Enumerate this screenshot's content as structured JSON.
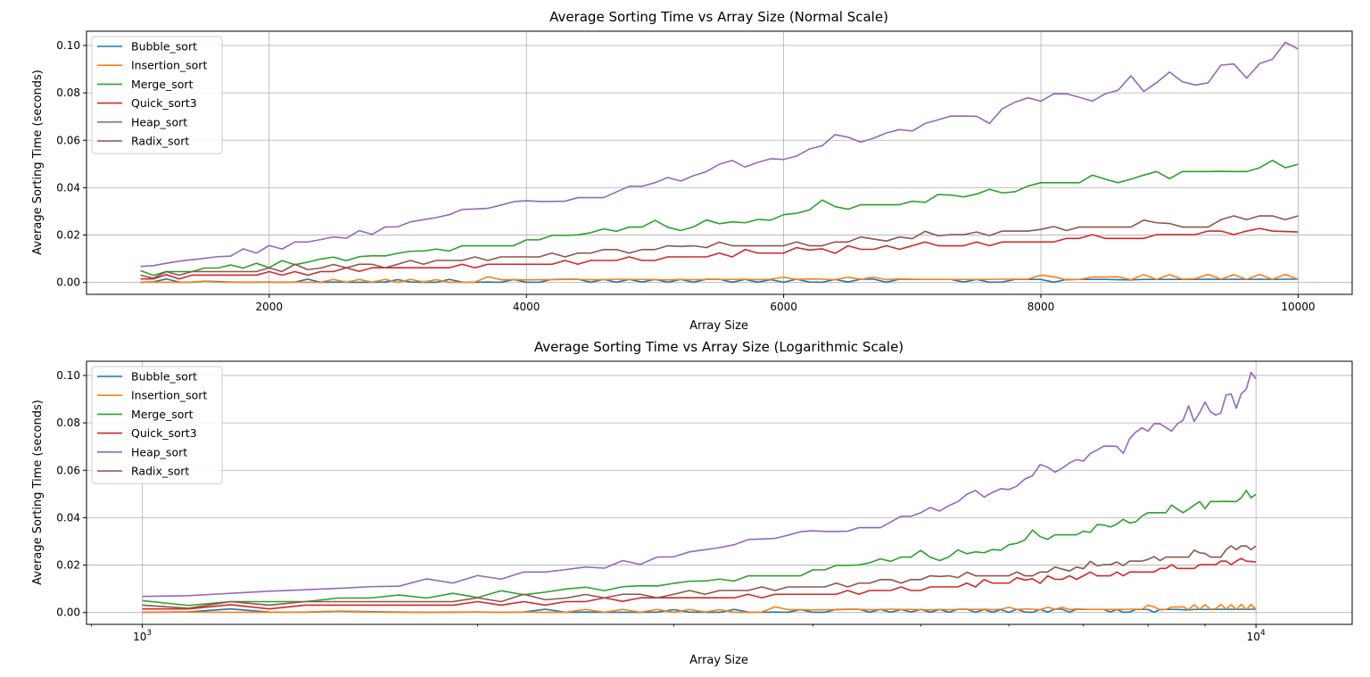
{
  "chart_data": [
    {
      "type": "line",
      "title": "Average Sorting Time vs Array Size (Normal Scale)",
      "xlabel": "Array Size",
      "ylabel": "Average Sorting Time (seconds)",
      "xscale": "linear",
      "xlim": [
        580,
        10420
      ],
      "ylim": [
        -0.005,
        0.106
      ],
      "xticks": [
        2000,
        4000,
        6000,
        8000,
        10000
      ],
      "xtick_labels": [
        "2000",
        "4000",
        "6000",
        "8000",
        "10000"
      ],
      "yticks": [
        0.0,
        0.02,
        0.04,
        0.06,
        0.08,
        0.1
      ],
      "ytick_labels": [
        "0.00",
        "0.02",
        "0.04",
        "0.06",
        "0.08",
        "0.10"
      ],
      "grid": true,
      "legend_position": "upper-left",
      "x": [
        1000,
        1100,
        1200,
        1300,
        1400,
        1500,
        1600,
        1700,
        1800,
        1900,
        2000,
        2100,
        2200,
        2300,
        2400,
        2500,
        2600,
        2700,
        2800,
        2900,
        3000,
        3100,
        3200,
        3300,
        3400,
        3500,
        3600,
        3700,
        3800,
        3900,
        4000,
        4100,
        4200,
        4300,
        4400,
        4500,
        4600,
        4700,
        4800,
        4900,
        5000,
        5100,
        5200,
        5300,
        5400,
        5500,
        5600,
        5700,
        5800,
        5900,
        6000,
        6100,
        6200,
        6300,
        6400,
        6500,
        6600,
        6700,
        6800,
        6900,
        7000,
        7100,
        7200,
        7300,
        7400,
        7500,
        7600,
        7700,
        7800,
        7900,
        8000,
        8100,
        8200,
        8300,
        8400,
        8500,
        8600,
        8700,
        8800,
        8900,
        9000,
        9100,
        9200,
        9300,
        9400,
        9500,
        9600,
        9700,
        9800,
        9900,
        10000
      ],
      "series": [
        {
          "name": "Bubble_sort",
          "color": "#1f77b4",
          "values": [
            0.0001,
            0.0003,
            0.0015,
            0.0002,
            0.0001,
            0.0006,
            0.0004,
            0.0002,
            0.0001,
            0.0001,
            0.0002,
            0.0001,
            0.0002,
            0.0014,
            0.0001,
            0.0002,
            0.0001,
            0.0001,
            0.0001,
            0.0002,
            0.0012,
            0.0002,
            0.0001,
            0.0001,
            0.0013,
            0.0002,
            0.0001,
            0.0002,
            0.0001,
            0.0012,
            0.0001,
            0.0001,
            0.0013,
            0.0014,
            0.0014,
            0.0001,
            0.0013,
            0.0001,
            0.0013,
            0.0002,
            0.0013,
            0.0001,
            0.0013,
            0.0001,
            0.0014,
            0.0014,
            0.0001,
            0.0013,
            0.0001,
            0.0012,
            0.0001,
            0.0014,
            0.0002,
            0.0001,
            0.0013,
            0.0002,
            0.0014,
            0.0014,
            0.0001,
            0.0014,
            0.0013,
            0.0013,
            0.0013,
            0.0013,
            0.0002,
            0.0013,
            0.0001,
            0.0002,
            0.0013,
            0.0013,
            0.0013,
            0.0001,
            0.0013,
            0.0013,
            0.0013,
            0.0013,
            0.0012,
            0.0011,
            0.0013,
            0.0013,
            0.0013,
            0.0013,
            0.0013,
            0.0014,
            0.0013,
            0.0014,
            0.0013,
            0.0014,
            0.0013,
            0.0014,
            0.0014
          ]
        },
        {
          "name": "Insertion_sort",
          "color": "#ff7f0e",
          "values": [
            0.0001,
            0.0002,
            0.0001,
            0.0001,
            0.0002,
            0.0006,
            0.0002,
            0.0001,
            0.0001,
            0.0002,
            0.0002,
            0.0001,
            0.0002,
            0.0001,
            0.0001,
            0.0013,
            0.0001,
            0.0013,
            0.0001,
            0.0013,
            0.0001,
            0.0013,
            0.0002,
            0.0012,
            0.0001,
            0.0001,
            0.0002,
            0.0024,
            0.0012,
            0.0012,
            0.0011,
            0.0012,
            0.0012,
            0.0013,
            0.0013,
            0.0012,
            0.0012,
            0.0014,
            0.0013,
            0.0013,
            0.0012,
            0.0011,
            0.0013,
            0.0012,
            0.0013,
            0.0013,
            0.0013,
            0.0014,
            0.0012,
            0.0014,
            0.0022,
            0.0013,
            0.0015,
            0.0014,
            0.0012,
            0.0022,
            0.0014,
            0.0022,
            0.0012,
            0.0015,
            0.0014,
            0.0013,
            0.0013,
            0.0013,
            0.0013,
            0.0013,
            0.0013,
            0.0014,
            0.0014,
            0.0014,
            0.0031,
            0.0024,
            0.0011,
            0.0013,
            0.0023,
            0.0023,
            0.0024,
            0.0012,
            0.0033,
            0.0013,
            0.0033,
            0.0014,
            0.0016,
            0.0034,
            0.0014,
            0.0033,
            0.0013,
            0.0034,
            0.0013,
            0.0034,
            0.0013
          ]
        },
        {
          "name": "Merge_sort",
          "color": "#2ca02c",
          "values": [
            0.005,
            0.003,
            0.0046,
            0.0046,
            0.0046,
            0.0061,
            0.0061,
            0.0074,
            0.0061,
            0.0081,
            0.0063,
            0.0092,
            0.0075,
            0.0086,
            0.0099,
            0.0107,
            0.0092,
            0.0109,
            0.0113,
            0.0112,
            0.0123,
            0.0132,
            0.0133,
            0.0141,
            0.0133,
            0.0155,
            0.0155,
            0.0155,
            0.0155,
            0.0155,
            0.018,
            0.018,
            0.0199,
            0.0199,
            0.0201,
            0.021,
            0.0226,
            0.0216,
            0.0234,
            0.0234,
            0.0262,
            0.0233,
            0.0219,
            0.0235,
            0.0264,
            0.0248,
            0.0256,
            0.0252,
            0.0266,
            0.0263,
            0.0286,
            0.0292,
            0.0306,
            0.0348,
            0.032,
            0.0309,
            0.0328,
            0.0328,
            0.0328,
            0.0328,
            0.0343,
            0.0338,
            0.0371,
            0.0369,
            0.0361,
            0.0373,
            0.0393,
            0.0378,
            0.0383,
            0.0407,
            0.0421,
            0.0421,
            0.0421,
            0.0421,
            0.0453,
            0.0436,
            0.0421,
            0.0436,
            0.0453,
            0.0468,
            0.0438,
            0.0468,
            0.0468,
            0.0468,
            0.0469,
            0.0468,
            0.0468,
            0.0484,
            0.0515,
            0.0484,
            0.0499
          ]
        },
        {
          "name": "Quick_sort3",
          "color": "#d62728",
          "values": [
            0.0015,
            0.0015,
            0.0033,
            0.0015,
            0.0031,
            0.0031,
            0.0031,
            0.0031,
            0.0031,
            0.0031,
            0.0046,
            0.0031,
            0.0046,
            0.0031,
            0.0046,
            0.0046,
            0.0062,
            0.0047,
            0.0062,
            0.0062,
            0.0062,
            0.0062,
            0.0062,
            0.0062,
            0.0062,
            0.0077,
            0.0062,
            0.0077,
            0.0077,
            0.0077,
            0.0077,
            0.0077,
            0.0077,
            0.0093,
            0.0077,
            0.0093,
            0.0093,
            0.0093,
            0.0108,
            0.0093,
            0.0093,
            0.0108,
            0.0108,
            0.0108,
            0.0108,
            0.0124,
            0.0108,
            0.0139,
            0.0124,
            0.0124,
            0.0124,
            0.0147,
            0.0137,
            0.0142,
            0.0123,
            0.0155,
            0.014,
            0.014,
            0.0155,
            0.014,
            0.0155,
            0.0171,
            0.0155,
            0.0155,
            0.0155,
            0.0171,
            0.0155,
            0.0171,
            0.0171,
            0.0171,
            0.0171,
            0.0171,
            0.0186,
            0.0186,
            0.0202,
            0.0186,
            0.0186,
            0.0186,
            0.0186,
            0.0202,
            0.0202,
            0.0202,
            0.0202,
            0.0217,
            0.0217,
            0.0202,
            0.0217,
            0.0228,
            0.0217,
            0.0215,
            0.0213
          ]
        },
        {
          "name": "Heap_sort",
          "color": "#9467bd",
          "values": [
            0.0068,
            0.0071,
            0.0081,
            0.009,
            0.0096,
            0.0102,
            0.0109,
            0.0111,
            0.0142,
            0.0124,
            0.0156,
            0.0141,
            0.0171,
            0.0171,
            0.0181,
            0.0192,
            0.0187,
            0.0219,
            0.0203,
            0.0234,
            0.0235,
            0.0256,
            0.0265,
            0.0274,
            0.0286,
            0.0308,
            0.031,
            0.0313,
            0.0326,
            0.0341,
            0.0345,
            0.0342,
            0.0342,
            0.0343,
            0.0358,
            0.0358,
            0.0358,
            0.0382,
            0.0406,
            0.0406,
            0.0421,
            0.0443,
            0.0428,
            0.0451,
            0.0468,
            0.0499,
            0.0515,
            0.0487,
            0.0507,
            0.0522,
            0.0519,
            0.0533,
            0.0563,
            0.0577,
            0.0624,
            0.0613,
            0.0592,
            0.0609,
            0.0631,
            0.0645,
            0.0639,
            0.0671,
            0.0686,
            0.0702,
            0.0702,
            0.0701,
            0.0671,
            0.0733,
            0.0761,
            0.0779,
            0.0765,
            0.0796,
            0.0796,
            0.0781,
            0.0765,
            0.0796,
            0.0811,
            0.0872,
            0.0806,
            0.0843,
            0.0888,
            0.0847,
            0.0833,
            0.0842,
            0.0917,
            0.0922,
            0.0862,
            0.0923,
            0.0942,
            0.1013,
            0.0985
          ]
        },
        {
          "name": "Radix_sort",
          "color": "#8c564b",
          "values": [
            0.0031,
            0.0018,
            0.0046,
            0.0031,
            0.0046,
            0.0046,
            0.0046,
            0.0046,
            0.0046,
            0.0046,
            0.0062,
            0.0046,
            0.0077,
            0.0054,
            0.0061,
            0.0076,
            0.0062,
            0.0077,
            0.0077,
            0.0062,
            0.0077,
            0.0093,
            0.0077,
            0.0093,
            0.0093,
            0.0093,
            0.0108,
            0.0093,
            0.0108,
            0.0108,
            0.0108,
            0.0108,
            0.0124,
            0.0108,
            0.0124,
            0.0124,
            0.0139,
            0.0139,
            0.0124,
            0.0139,
            0.0139,
            0.0155,
            0.0152,
            0.0155,
            0.0147,
            0.017,
            0.0155,
            0.0155,
            0.0155,
            0.0155,
            0.0155,
            0.0171,
            0.0155,
            0.0155,
            0.0171,
            0.0171,
            0.0192,
            0.0183,
            0.0175,
            0.0192,
            0.0185,
            0.0216,
            0.0197,
            0.0202,
            0.0202,
            0.0213,
            0.0198,
            0.0217,
            0.0217,
            0.0217,
            0.0224,
            0.0236,
            0.0219,
            0.0234,
            0.0234,
            0.0234,
            0.0234,
            0.0234,
            0.0263,
            0.0252,
            0.0249,
            0.0234,
            0.0234,
            0.0234,
            0.0265,
            0.0281,
            0.0265,
            0.0281,
            0.0281,
            0.0265,
            0.0281
          ]
        }
      ]
    },
    {
      "type": "line",
      "title": "Average Sorting Time vs Array Size (Logarithmic Scale)",
      "xlabel": "Array Size",
      "ylabel": "Average Sorting Time (seconds)",
      "xscale": "log",
      "xlim": [
        891,
        12200
      ],
      "ylim": [
        -0.005,
        0.106
      ],
      "xticks": [
        1000,
        10000
      ],
      "xtick_labels": [
        "10",
        "10"
      ],
      "xtick_label_exponents": [
        "3",
        "4"
      ],
      "yticks": [
        0.0,
        0.02,
        0.04,
        0.06,
        0.08,
        0.1
      ],
      "ytick_labels": [
        "0.00",
        "0.02",
        "0.04",
        "0.06",
        "0.08",
        "0.10"
      ],
      "grid": true,
      "legend_position": "upper-left",
      "same_data_as": "chart 1 (identical x and series values)"
    }
  ]
}
